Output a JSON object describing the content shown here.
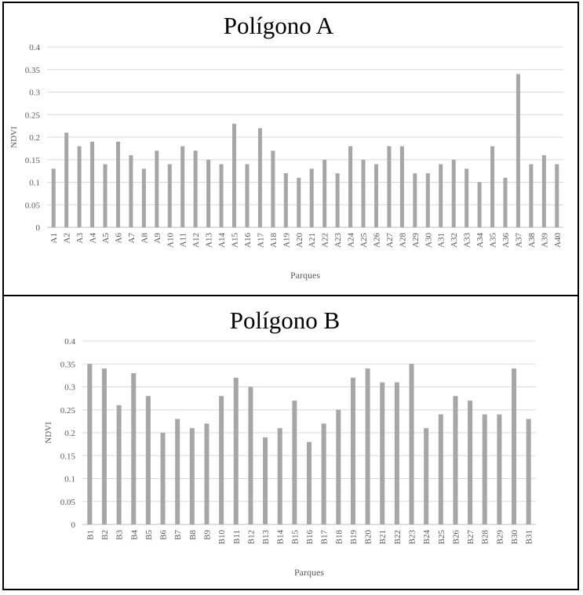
{
  "chart_data": [
    {
      "type": "bar",
      "title": "Polígono A",
      "xlabel": "Parques",
      "ylabel": "NDVI",
      "ylim": [
        0,
        0.4
      ],
      "yticks": [
        "0",
        "0.05",
        "0.1",
        "0.15",
        "0.2",
        "0.25",
        "0.3",
        "0.35",
        "0.4"
      ],
      "grid": true,
      "categories": [
        "A1",
        "A2",
        "A3",
        "A4",
        "A5",
        "A6",
        "A7",
        "A8",
        "A9",
        "A10",
        "A11",
        "A12",
        "A13",
        "A14",
        "A15",
        "A16",
        "A17",
        "A18",
        "A19",
        "A20",
        "A21",
        "A22",
        "A23",
        "A24",
        "A25",
        "A26",
        "A27",
        "A28",
        "A29",
        "A30",
        "A31",
        "A32",
        "A33",
        "A34",
        "A35",
        "A36",
        "A37",
        "A38",
        "A39",
        "A40"
      ],
      "values": [
        0.13,
        0.21,
        0.18,
        0.19,
        0.14,
        0.19,
        0.16,
        0.13,
        0.17,
        0.14,
        0.18,
        0.17,
        0.15,
        0.14,
        0.23,
        0.14,
        0.22,
        0.17,
        0.12,
        0.11,
        0.13,
        0.15,
        0.12,
        0.18,
        0.15,
        0.14,
        0.18,
        0.18,
        0.12,
        0.12,
        0.14,
        0.15,
        0.13,
        0.1,
        0.18,
        0.11,
        0.34,
        0.14,
        0.16,
        0.14
      ],
      "bar_color": "#a6a6a6"
    },
    {
      "type": "bar",
      "title": "Polígono B",
      "xlabel": "Parques",
      "ylabel": "NDVI",
      "ylim": [
        0,
        0.4
      ],
      "yticks": [
        "0",
        "0.05",
        "0.1",
        "0.15",
        "0.2",
        "0.25",
        "0.3",
        "0.35",
        "0.4"
      ],
      "grid": true,
      "categories": [
        "B1",
        "B2",
        "B3",
        "B4",
        "B5",
        "B6",
        "B7",
        "B8",
        "B9",
        "B10",
        "B11",
        "B12",
        "B13",
        "B14",
        "B15",
        "B16",
        "B17",
        "B18",
        "B19",
        "B20",
        "B21",
        "B22",
        "B23",
        "B24",
        "B25",
        "B26",
        "B27",
        "B28",
        "B29",
        "B30",
        "B31"
      ],
      "values": [
        0.35,
        0.34,
        0.26,
        0.33,
        0.28,
        0.2,
        0.23,
        0.21,
        0.22,
        0.28,
        0.32,
        0.3,
        0.19,
        0.21,
        0.27,
        0.18,
        0.22,
        0.25,
        0.32,
        0.34,
        0.31,
        0.31,
        0.35,
        0.21,
        0.24,
        0.28,
        0.27,
        0.24,
        0.24,
        0.34,
        0.23
      ],
      "bar_color": "#a6a6a6"
    }
  ]
}
